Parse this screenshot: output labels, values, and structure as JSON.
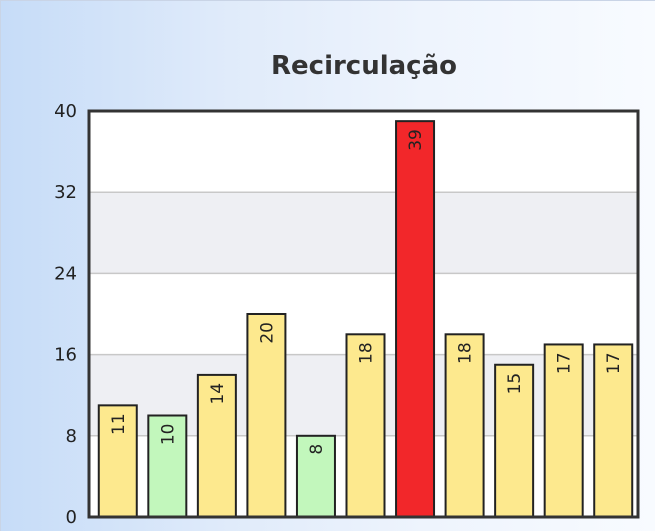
{
  "chart_data": {
    "type": "bar",
    "title": "Recirculação",
    "categories": [
      "",
      "",
      "",
      "",
      "",
      "",
      "",
      "",
      "",
      "",
      ""
    ],
    "values": [
      11,
      10,
      14,
      20,
      8,
      18,
      39,
      18,
      15,
      17,
      17
    ],
    "bar_colors": [
      "#fde98e",
      "#c2f7bc",
      "#fde98e",
      "#fde98e",
      "#c2f7bc",
      "#fde98e",
      "#f2272a",
      "#fde98e",
      "#fde98e",
      "#fde98e",
      "#fde98e"
    ],
    "ylim": [
      0,
      40
    ],
    "yticks": [
      "0",
      "8",
      "16",
      "24",
      "32",
      "40"
    ],
    "xlabel": "",
    "ylabel": "",
    "grid": true,
    "legend": "none",
    "data_labels": "rotated-inside-top"
  }
}
